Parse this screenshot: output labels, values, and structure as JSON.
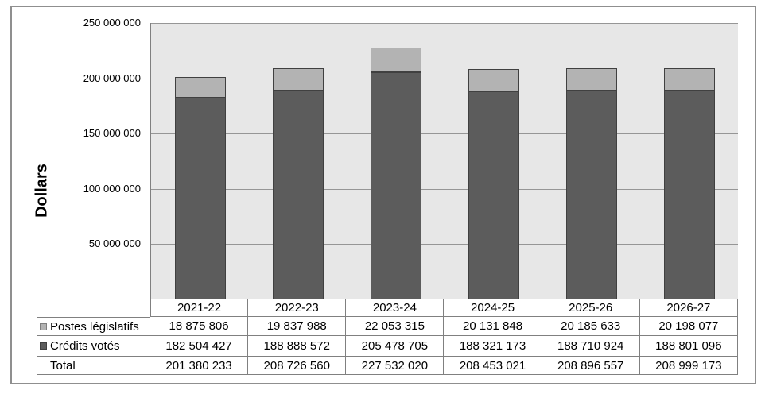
{
  "chart_data": {
    "type": "bar",
    "stacked": true,
    "title": "",
    "xlabel": "",
    "ylabel": "Dollars",
    "categories": [
      "2021-22",
      "2022-23",
      "2023-24",
      "2024-25",
      "2025-26",
      "2026-27"
    ],
    "series": [
      {
        "name": "Postes législatifs",
        "color": "#b3b3b3",
        "border_color": "#404040",
        "values": [
          18875806,
          19837988,
          22053315,
          20131848,
          20185633,
          20198077
        ]
      },
      {
        "name": "Crédits votés",
        "color": "#5c5c5c",
        "border_color": "#404040",
        "values": [
          182504427,
          188888572,
          205478705,
          188321173,
          188710924,
          188801096
        ]
      }
    ],
    "totals": [
      201380233,
      208726560,
      227532020,
      208453021,
      208896557,
      208999173
    ],
    "ylim": [
      0,
      250000000
    ],
    "ytick_step": 50000000,
    "ytick_labels": [
      "250 000 000",
      "200 000 000",
      "150 000 000",
      "100 000 000",
      "50 000 000"
    ],
    "grid": true,
    "plot_bg": "#e7e7e7",
    "gridline_color": "#969696",
    "legend_position": "table-row-headers"
  },
  "table": {
    "corner_label": "",
    "columns": [
      "2021-22",
      "2022-23",
      "2023-24",
      "2024-25",
      "2025-26",
      "2026-27"
    ],
    "rows": [
      {
        "label": "Postes législatifs",
        "marker_color": "#b3b3b3",
        "marker_border": "#7f7f7f",
        "values": [
          "18 875 806",
          "19 837 988",
          "22 053 315",
          "20 131 848",
          "20 185 633",
          "20 198 077"
        ]
      },
      {
        "label": "Crédits votés",
        "marker_color": "#5c5c5c",
        "marker_border": "#404040",
        "values": [
          "182 504 427",
          "188 888 572",
          "205 478 705",
          "188 321 173",
          "188 710 924",
          "188 801 096"
        ]
      },
      {
        "label": "Total",
        "marker_color": null,
        "marker_border": null,
        "values": [
          "201 380 233",
          "208 726 560",
          "227 532 020",
          "208 453 021",
          "208 896 557",
          "208 999 173"
        ]
      }
    ]
  },
  "colors": {
    "figure_border": "#8f8f8f",
    "table_border": "#808080",
    "axis": "#808080"
  }
}
